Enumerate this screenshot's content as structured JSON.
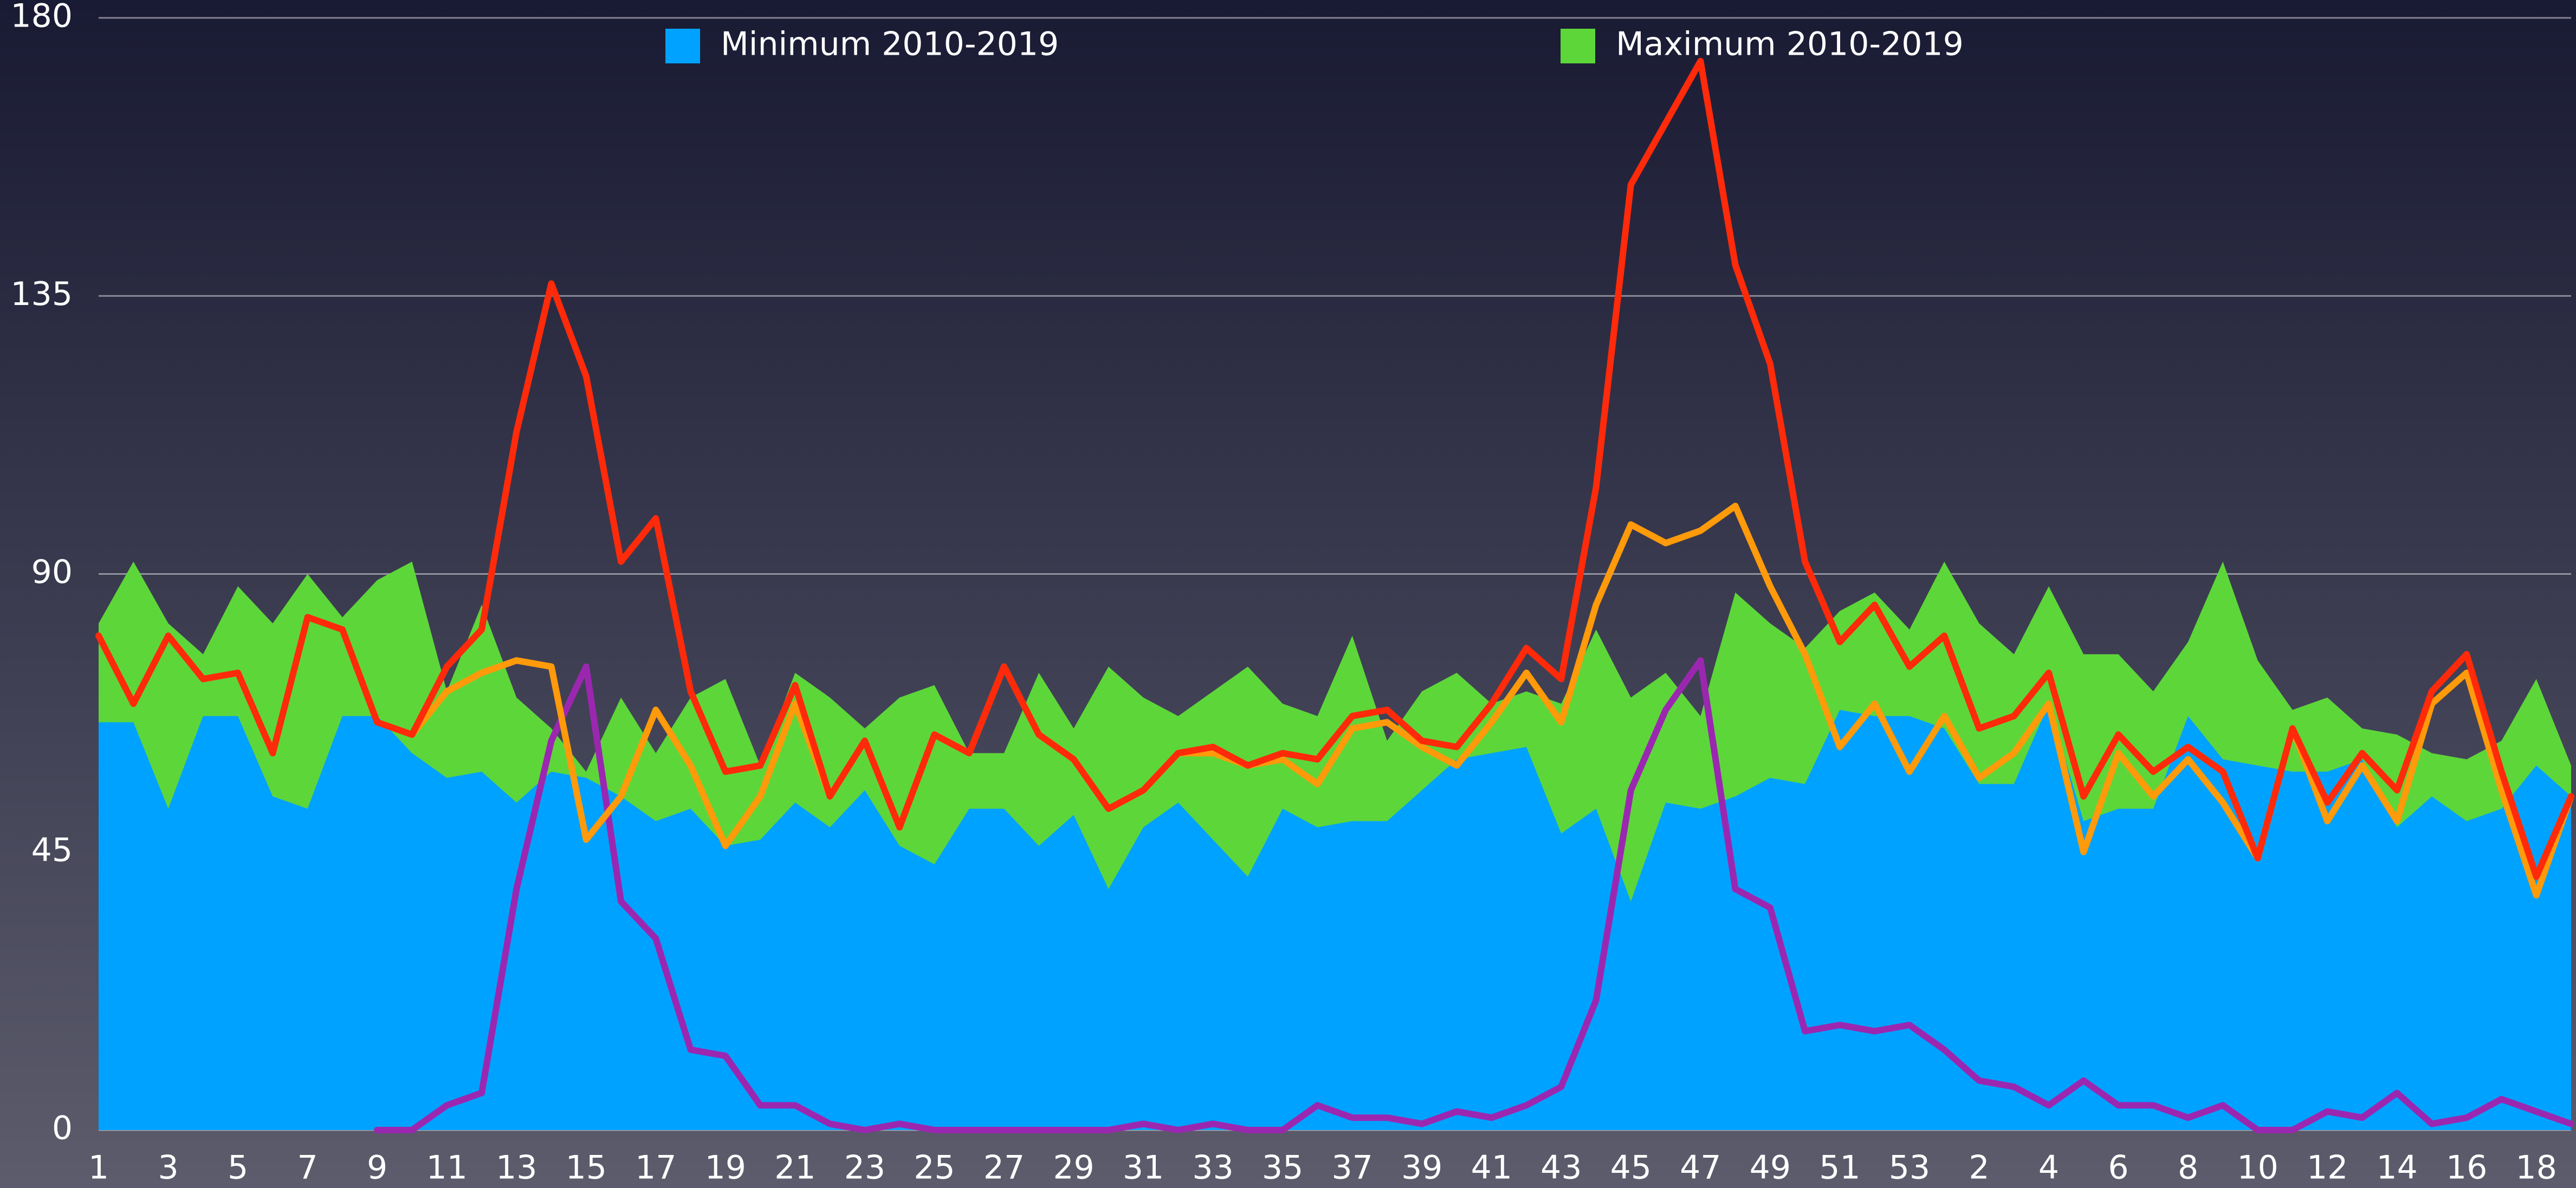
{
  "chart_data": {
    "type": "area-line",
    "categories": [
      "1",
      null,
      "3",
      null,
      "5",
      null,
      "7",
      null,
      "9",
      null,
      "11",
      null,
      "13",
      null,
      "15",
      null,
      "17",
      null,
      "19",
      null,
      "21",
      null,
      "23",
      null,
      "25",
      null,
      "27",
      null,
      "29",
      null,
      "31",
      null,
      "33",
      null,
      "35",
      null,
      "37",
      null,
      "39",
      null,
      "41",
      null,
      "43",
      null,
      "45",
      null,
      "47",
      null,
      "49",
      null,
      "51",
      null,
      "53",
      null,
      "2",
      null,
      "4",
      null,
      "6",
      null,
      "8",
      null,
      "10",
      null,
      "12",
      null,
      "14",
      null,
      "16",
      null,
      "18",
      null
    ],
    "series": [
      {
        "name": "Maximum 2010-2019",
        "color": "#5dd63a",
        "area": true,
        "values": [
          82,
          92,
          82,
          77,
          88,
          82,
          90,
          83,
          89,
          92,
          71,
          85,
          70,
          65,
          58,
          70,
          61,
          70,
          73,
          59,
          74,
          70,
          65,
          70,
          72,
          61,
          61,
          74,
          65,
          75,
          70,
          67,
          71,
          75,
          69,
          67,
          80,
          63,
          71,
          74,
          69,
          71,
          69,
          81,
          70,
          74,
          67,
          87,
          82,
          78,
          84,
          87,
          81,
          92,
          82,
          77,
          88,
          77,
          77,
          71,
          79,
          92,
          76,
          68,
          70,
          65,
          64,
          61,
          60,
          63,
          73,
          59
        ]
      },
      {
        "name": "Minimum 2010-2019",
        "color": "#00a2ff",
        "area": true,
        "values": [
          66,
          66,
          52,
          67,
          67,
          54,
          52,
          67,
          67,
          61,
          57,
          58,
          53,
          58,
          57,
          54,
          50,
          52,
          46,
          47,
          53,
          49,
          55,
          46,
          43,
          52,
          52,
          46,
          51,
          39,
          49,
          53,
          47,
          41,
          52,
          49,
          50,
          50,
          55,
          60,
          61,
          62,
          48,
          52,
          37,
          53,
          52,
          54,
          57,
          56,
          68,
          67,
          67,
          65,
          56,
          56,
          69,
          50,
          52,
          52,
          67,
          60,
          59,
          58,
          58,
          60,
          49,
          54,
          50,
          52,
          59,
          54
        ]
      },
      {
        "color": "#9b27b0",
        "area": false,
        "values": [
          null,
          null,
          null,
          null,
          null,
          null,
          null,
          null,
          0,
          0,
          4,
          6,
          39,
          63,
          75,
          37,
          31,
          13,
          12,
          4,
          4,
          1,
          0,
          1,
          0,
          0,
          0,
          0,
          0,
          0,
          1,
          0,
          1,
          0,
          0,
          4,
          2,
          2,
          1,
          3,
          2,
          4,
          7,
          21,
          55,
          68,
          76,
          39,
          36,
          16,
          17,
          16,
          17,
          13,
          8,
          7,
          4,
          8,
          4,
          4,
          2,
          4,
          0,
          0,
          3,
          2,
          6,
          1,
          2,
          5,
          3,
          1
        ]
      },
      {
        "color": "#ff9a0a",
        "area": false,
        "values": [
          null,
          null,
          null,
          null,
          null,
          null,
          null,
          null,
          null,
          64,
          71,
          74,
          76,
          75,
          47,
          54,
          68,
          59,
          46,
          54,
          69,
          54,
          63,
          49,
          64,
          61,
          75,
          64,
          60,
          52,
          55,
          61,
          61,
          59,
          60,
          56,
          65,
          66,
          62,
          59,
          66,
          74,
          66,
          85,
          98,
          95,
          97,
          101,
          88,
          77,
          62,
          69,
          58,
          67,
          57,
          61,
          69,
          45,
          61,
          54,
          60,
          53,
          44,
          65,
          50,
          59,
          50,
          69,
          74,
          55,
          38,
          54
        ]
      },
      {
        "color": "#ff2a0a",
        "area": false,
        "values": [
          80,
          69,
          80,
          73,
          74,
          61,
          83,
          81,
          66,
          64,
          75,
          81,
          113,
          137,
          122,
          92,
          99,
          71,
          58,
          59,
          72,
          54,
          63,
          49,
          64,
          61,
          75,
          64,
          60,
          52,
          55,
          61,
          62,
          59,
          61,
          60,
          67,
          68,
          63,
          62,
          69,
          78,
          73,
          104,
          153,
          163,
          173,
          140,
          124,
          92,
          79,
          85,
          75,
          80,
          65,
          67,
          74,
          54,
          64,
          58,
          62,
          58,
          44,
          65,
          53,
          61,
          55,
          71,
          77,
          58,
          41,
          54
        ]
      }
    ],
    "ylim": [
      0,
      180
    ],
    "yticks": [
      0,
      45,
      90,
      135,
      180
    ],
    "grid": true,
    "legend": "top"
  }
}
